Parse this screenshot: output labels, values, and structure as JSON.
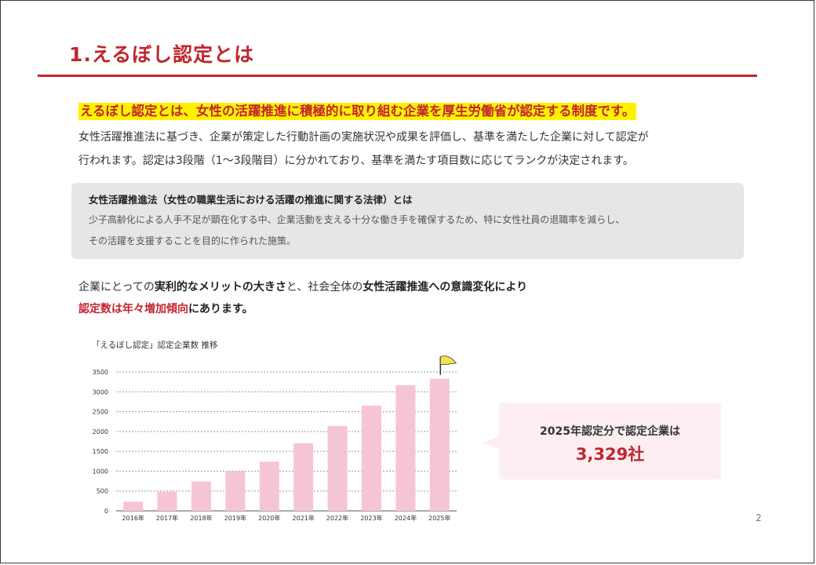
{
  "header": {
    "title": "1.えるぼし認定とは"
  },
  "lead": {
    "highlight": "えるぼし認定とは、女性の活躍推進に積極的に取り組む企業を厚生労働省が認定する制度です。",
    "line1": "女性活躍推進法に基づき、企業が策定した行動計画の実施状況や成果を評価し、基準を満たした企業に対して認定が",
    "line2": "行われます。認定は3段階（1〜3段階目）に分かれており、基準を満たす項目数に応じてランクが決定されます。"
  },
  "law_box": {
    "heading": "女性活躍推進法（女性の職業生活における活躍の推進に関する法律）とは",
    "line1": "少子高齢化による人手不足が顕在化する中、企業活動を支える十分な働き手を確保するため、特に女性社員の退職率を減らし、",
    "line2": "その活躍を支援することを目的に作られた施策。"
  },
  "summary": {
    "s1": "企業にとっての",
    "s2": "実利的なメリットの大きさ",
    "s3": "と、社会全体の",
    "s4": "女性活躍推進への意識変化により",
    "s5": "認定数は年々増加傾向",
    "s6": "にあります。"
  },
  "chart_title": "「えるぼし認定」認定企業数 推移",
  "colors": {
    "accent": "#c0262d",
    "highlight": "#fff200",
    "bar": "#f6c5d4",
    "flag": "#f5df4d",
    "callout_bg": "#fdeef1"
  },
  "chart_data": {
    "type": "bar",
    "title": "「えるぼし認定」認定企業数 推移",
    "categories": [
      "2016年",
      "2017年",
      "2018年",
      "2019年",
      "2020年",
      "2021年",
      "2022年",
      "2023年",
      "2024年",
      "2025年"
    ],
    "values": [
      230,
      480,
      740,
      1000,
      1240,
      1700,
      2140,
      2650,
      3170,
      3329
    ],
    "ylim": [
      0,
      3500
    ],
    "yticks": [
      0,
      500,
      1000,
      1500,
      2000,
      2500,
      3000,
      3500
    ],
    "grid": true,
    "xlabel": "",
    "ylabel": "",
    "marker_icon": "flag-icon"
  },
  "callout": {
    "line1": "2025年認定分で認定企業は",
    "value": "3,329社"
  },
  "page_number": "2"
}
